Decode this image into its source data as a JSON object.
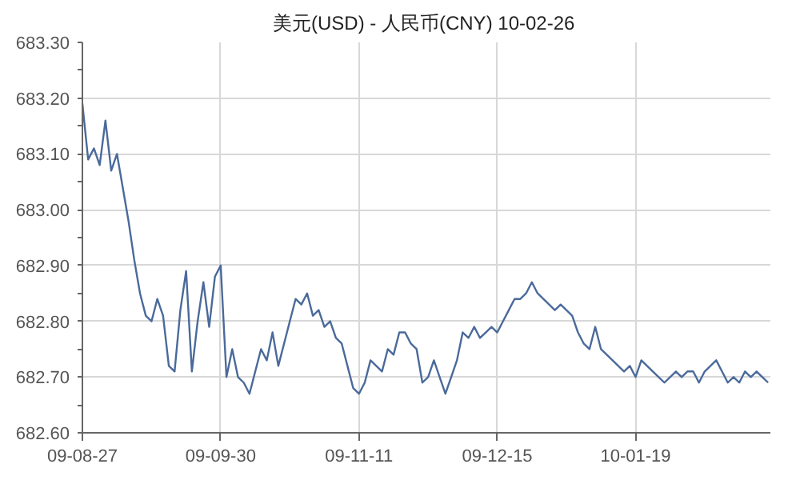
{
  "chart_data": {
    "type": "line",
    "title": "美元(USD) - 人民币(CNY)  10-02-26",
    "categories": [
      "09-08-27",
      null,
      null,
      null,
      null,
      null,
      null,
      null,
      null,
      null,
      null,
      null,
      null,
      null,
      null,
      null,
      null,
      null,
      null,
      null,
      null,
      null,
      null,
      null,
      "09-09-30",
      null,
      null,
      null,
      null,
      null,
      null,
      null,
      null,
      null,
      null,
      null,
      null,
      null,
      null,
      null,
      null,
      null,
      null,
      null,
      null,
      null,
      null,
      null,
      "09-11-11",
      null,
      null,
      null,
      null,
      null,
      null,
      null,
      null,
      null,
      null,
      null,
      null,
      null,
      null,
      null,
      null,
      null,
      null,
      null,
      null,
      null,
      null,
      null,
      "09-12-15",
      null,
      null,
      null,
      null,
      null,
      null,
      null,
      null,
      null,
      null,
      null,
      null,
      null,
      null,
      null,
      null,
      null,
      null,
      null,
      null,
      null,
      null,
      null,
      "10-01-19",
      null,
      null,
      null,
      null,
      null,
      null,
      null,
      null,
      null,
      null,
      null,
      null,
      null,
      null,
      null,
      null,
      null,
      null,
      null,
      null,
      null,
      null,
      null
    ],
    "series": [
      {
        "color": "#4a6a9a",
        "values": [
          683.19,
          683.09,
          683.11,
          683.08,
          683.16,
          683.07,
          683.1,
          683.04,
          682.98,
          682.91,
          682.85,
          682.81,
          682.8,
          682.84,
          682.81,
          682.72,
          682.71,
          682.82,
          682.89,
          682.71,
          682.8,
          682.87,
          682.79,
          682.88,
          682.9,
          682.7,
          682.75,
          682.7,
          682.69,
          682.67,
          682.71,
          682.75,
          682.73,
          682.78,
          682.72,
          682.76,
          682.8,
          682.84,
          682.83,
          682.85,
          682.81,
          682.82,
          682.79,
          682.8,
          682.77,
          682.76,
          682.72,
          682.68,
          682.67,
          682.69,
          682.73,
          682.72,
          682.71,
          682.75,
          682.74,
          682.78,
          682.78,
          682.76,
          682.75,
          682.69,
          682.7,
          682.73,
          682.7,
          682.67,
          682.7,
          682.73,
          682.78,
          682.77,
          682.79,
          682.77,
          682.78,
          682.79,
          682.78,
          682.8,
          682.82,
          682.84,
          682.84,
          682.85,
          682.87,
          682.85,
          682.84,
          682.83,
          682.82,
          682.83,
          682.82,
          682.81,
          682.78,
          682.76,
          682.75,
          682.79,
          682.75,
          682.74,
          682.73,
          682.72,
          682.71,
          682.72,
          682.7,
          682.73,
          682.72,
          682.71,
          682.7,
          682.69,
          682.7,
          682.71,
          682.7,
          682.71,
          682.71,
          682.69,
          682.71,
          682.72,
          682.73,
          682.71,
          682.69,
          682.7,
          682.69,
          682.71,
          682.7,
          682.71,
          682.7,
          682.69
        ]
      }
    ],
    "ylim": [
      682.6,
      683.3
    ],
    "yticks": [
      {
        "value": 682.6,
        "label": "682.60"
      },
      {
        "value": 682.7,
        "label": "682.70"
      },
      {
        "value": 682.8,
        "label": "682.80"
      },
      {
        "value": 682.9,
        "label": "682.90"
      },
      {
        "value": 683.0,
        "label": "683.00"
      },
      {
        "value": 683.1,
        "label": "683.10"
      },
      {
        "value": 683.2,
        "label": "683.20"
      },
      {
        "value": 683.3,
        "label": "683.30"
      }
    ],
    "grid": true,
    "marker": "none",
    "line_style": "solid"
  }
}
